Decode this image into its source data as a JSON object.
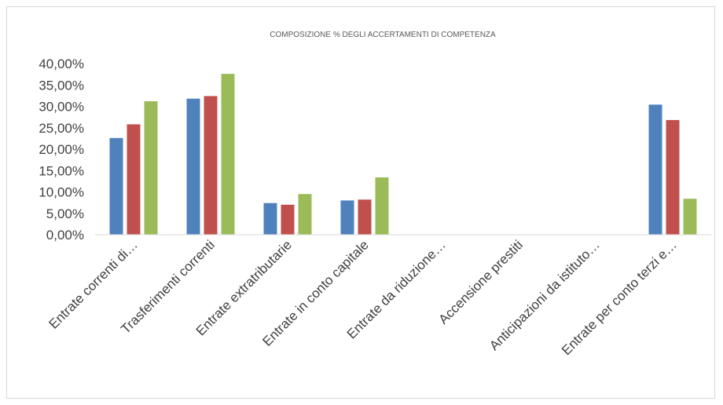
{
  "chart_data": {
    "type": "bar",
    "title": "COMPOSIZIONE % DEGLI ACCERTAMENTI DI COMPETENZA",
    "categories": [
      "Entrate correnti di…",
      "Trasferimenti correnti",
      "Entrate extratributarie",
      "Entrate in conto capitale",
      "Entrate da riduzione…",
      "Accensione prestiti",
      "Anticipazioni da istituto…",
      "Entrate per conto terzi e…"
    ],
    "series": [
      {
        "color": "#4f81bd",
        "values": [
          22.6,
          31.8,
          7.4,
          8.0,
          0,
          0,
          0,
          30.4
        ]
      },
      {
        "color": "#c0504d",
        "values": [
          25.8,
          32.4,
          7.0,
          8.2,
          0,
          0,
          0,
          26.8
        ]
      },
      {
        "color": "#9bbb59",
        "values": [
          31.2,
          37.6,
          9.5,
          13.4,
          0,
          0,
          0,
          8.4
        ]
      }
    ],
    "yticks": [
      "0,00%",
      "5,00%",
      "10,00%",
      "15,00%",
      "20,00%",
      "25,00%",
      "30,00%",
      "35,00%",
      "40,00%"
    ],
    "ylim": [
      0,
      40
    ],
    "grid": false,
    "legend": "none"
  }
}
